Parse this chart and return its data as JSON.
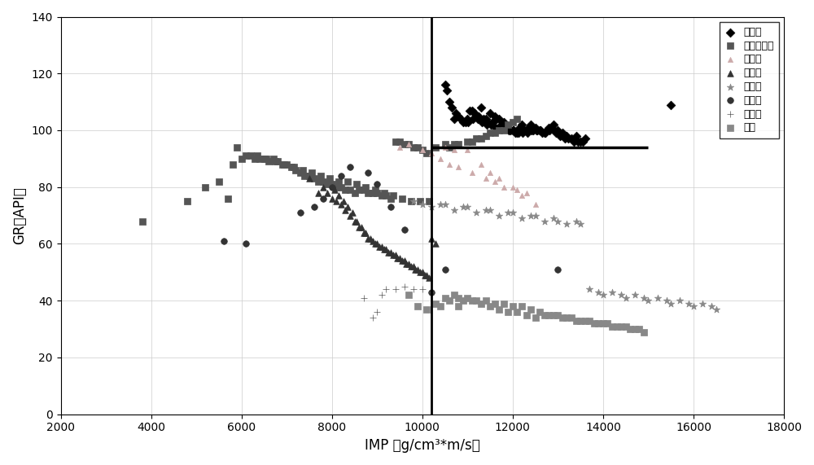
{
  "title": "",
  "xlabel": "IMP （g/cm³*m/s）",
  "ylabel": "GR（API）",
  "xlim": [
    2000,
    18000
  ],
  "ylim": [
    0,
    140
  ],
  "xticks": [
    2000,
    4000,
    6000,
    8000,
    10000,
    12000,
    14000,
    16000,
    18000
  ],
  "yticks": [
    0,
    20,
    40,
    60,
    80,
    100,
    120,
    140
  ],
  "vline_x": 10200,
  "hline_y": 94,
  "hline_xstart": 10200,
  "hline_xend": 15000,
  "series": {
    "粗面岩": {
      "marker": "D",
      "color": "#000000",
      "size": 30,
      "x": [
        10500,
        10700,
        10900,
        11000,
        11100,
        11200,
        11300,
        11400,
        11500,
        11600,
        11700,
        11800,
        11900,
        12000,
        12100,
        12200,
        12300,
        12400,
        12500,
        12600,
        12700,
        12800,
        12900,
        13000,
        13100,
        13200,
        13400,
        13600,
        10600,
        10800,
        11050,
        11150,
        11250,
        11350,
        11450,
        11550,
        11650,
        11750,
        11850,
        11950,
        12050,
        12150,
        12250,
        12350,
        12450,
        12550,
        12650,
        12750,
        12850,
        12950,
        13050,
        13150,
        13300,
        13500,
        10550,
        10650,
        10750,
        10850,
        10950,
        11020,
        11120,
        11220,
        11320,
        11420,
        11520,
        11620,
        11720,
        11820,
        11920,
        12020,
        12120,
        12220,
        12320,
        12420,
        12520,
        12620,
        12720,
        12820,
        12920,
        13020,
        13120,
        13220,
        13350,
        13450,
        13550,
        15500
      ],
      "y": [
        116,
        104,
        103,
        104,
        107,
        105,
        108,
        104,
        106,
        105,
        104,
        103,
        101,
        100,
        99,
        102,
        100,
        102,
        101,
        100,
        99,
        101,
        102,
        100,
        99,
        98,
        98,
        97,
        110,
        105,
        107,
        106,
        105,
        104,
        103,
        103,
        104,
        102,
        101,
        100,
        99,
        101,
        100,
        101,
        100,
        100,
        99,
        100,
        101,
        99,
        98,
        97,
        97,
        96,
        114,
        108,
        106,
        104,
        103,
        103,
        104,
        104,
        103,
        102,
        102,
        101,
        101,
        101,
        100,
        100,
        99,
        99,
        99,
        100,
        100,
        100,
        99,
        100,
        100,
        99,
        98,
        97,
        96,
        96,
        96,
        109
      ]
    },
    "蚀变玄武岩": {
      "marker": "s",
      "color": "#555555",
      "size": 30,
      "x": [
        5700,
        5900,
        6000,
        6200,
        6300,
        6400,
        6500,
        6600,
        6700,
        6800,
        6900,
        7000,
        7100,
        7200,
        7300,
        7400,
        7500,
        7600,
        7700,
        7800,
        7900,
        8000,
        8100,
        8200,
        8300,
        8400,
        8500,
        8600,
        8700,
        8800,
        8900,
        9000,
        9100,
        9200,
        9300,
        9400,
        9500,
        9600,
        9700,
        9800,
        9900,
        10000,
        10100,
        3800,
        4800,
        5200,
        5500,
        5800,
        6100,
        6350,
        6550,
        6750,
        6950,
        7150,
        7350,
        7550,
        7750,
        7950,
        8150,
        8350,
        8550,
        8750,
        8950,
        9150,
        9350,
        9550,
        9750,
        9950,
        10150,
        10300,
        10500,
        10700,
        11000,
        11200,
        11400,
        11500,
        11700,
        11900,
        12100,
        10600,
        10800,
        11100,
        11300,
        11600,
        11800,
        12000
      ],
      "y": [
        76,
        94,
        90,
        91,
        90,
        90,
        90,
        89,
        90,
        89,
        88,
        88,
        87,
        86,
        85,
        84,
        84,
        83,
        82,
        82,
        81,
        81,
        80,
        80,
        79,
        79,
        78,
        79,
        79,
        78,
        78,
        78,
        77,
        77,
        76,
        96,
        96,
        95,
        95,
        94,
        94,
        93,
        92,
        68,
        75,
        80,
        82,
        88,
        91,
        91,
        90,
        89,
        88,
        87,
        86,
        85,
        84,
        83,
        82,
        82,
        81,
        80,
        79,
        78,
        77,
        76,
        75,
        75,
        75,
        94,
        95,
        95,
        96,
        97,
        98,
        99,
        100,
        102,
        104,
        94,
        95,
        96,
        97,
        99,
        100,
        103
      ]
    },
    "砂砾岩": {
      "marker": "^",
      "color": "#ccaaaa",
      "size": 20,
      "x": [
        9500,
        9700,
        10000,
        10500,
        10700,
        11000,
        11300,
        11500,
        11700,
        12000,
        12200,
        12500,
        10200,
        10400,
        10600,
        10800,
        11100,
        11400,
        11600,
        11800,
        12100,
        12300
      ],
      "y": [
        94,
        95,
        93,
        94,
        93,
        93,
        88,
        85,
        83,
        80,
        77,
        74,
        92,
        90,
        88,
        87,
        85,
        83,
        82,
        80,
        79,
        78
      ]
    },
    "细砂岩": {
      "marker": "^",
      "color": "#333333",
      "size": 30,
      "x": [
        7500,
        7700,
        7800,
        7900,
        8000,
        8100,
        8200,
        8300,
        8400,
        8500,
        8600,
        8700,
        8800,
        8900,
        9000,
        9100,
        9200,
        9300,
        9400,
        9500,
        9600,
        9700,
        9800,
        9900,
        10000,
        10100,
        10200,
        10300,
        8050,
        8150,
        8250,
        8350,
        8450,
        8550,
        8650,
        8750,
        8850,
        8950,
        9050,
        9150,
        9250,
        9350,
        9450,
        9550,
        9650,
        9750,
        9850,
        9950,
        10050,
        10150
      ],
      "y": [
        83,
        78,
        80,
        78,
        76,
        75,
        74,
        72,
        70,
        68,
        66,
        64,
        62,
        61,
        60,
        59,
        58,
        57,
        56,
        55,
        54,
        53,
        52,
        51,
        50,
        49,
        62,
        60,
        79,
        77,
        75,
        73,
        71,
        68,
        66,
        64,
        62,
        60,
        59,
        58,
        57,
        56,
        55,
        54,
        53,
        52,
        51,
        50,
        49,
        48
      ]
    },
    "玄武岩": {
      "marker": "*",
      "color": "#888888",
      "size": 40,
      "x": [
        9800,
        10000,
        10500,
        11000,
        11500,
        12000,
        12500,
        13000,
        13500,
        14000,
        14500,
        15000,
        15500,
        16000,
        16500,
        10200,
        10700,
        11200,
        11700,
        12200,
        12700,
        13200,
        13700,
        14200,
        14700,
        15200,
        15700,
        16200,
        10400,
        10900,
        11400,
        11900,
        12400,
        12900,
        13400,
        13900,
        14400,
        14900,
        15400,
        15900,
        16400
      ],
      "y": [
        75,
        74,
        74,
        73,
        72,
        71,
        70,
        68,
        67,
        42,
        41,
        40,
        39,
        38,
        37,
        73,
        72,
        71,
        70,
        69,
        68,
        67,
        44,
        43,
        42,
        41,
        40,
        39,
        74,
        73,
        72,
        71,
        70,
        69,
        68,
        43,
        42,
        41,
        40,
        39,
        38
      ]
    },
    "粉砂岩": {
      "marker": "o",
      "color": "#333333",
      "size": 30,
      "x": [
        5600,
        6100,
        7300,
        7600,
        7800,
        8000,
        8200,
        8400,
        8800,
        9000,
        9300,
        9600,
        10200,
        10500,
        13000
      ],
      "y": [
        61,
        60,
        71,
        73,
        76,
        80,
        84,
        87,
        85,
        81,
        73,
        65,
        43,
        51,
        51
      ]
    },
    "角砾岩": {
      "marker": "+",
      "color": "#555555",
      "size": 40,
      "x": [
        8700,
        8900,
        9000,
        9100,
        9200,
        9400,
        9600,
        9800,
        10000,
        10200
      ],
      "y": [
        41,
        34,
        36,
        42,
        44,
        44,
        45,
        44,
        44,
        43
      ]
    },
    "泥岩": {
      "marker": "s",
      "color": "#888888",
      "size": 30,
      "x": [
        9700,
        9900,
        10100,
        10300,
        10500,
        10700,
        10900,
        11100,
        11300,
        11500,
        11700,
        11900,
        12100,
        12300,
        12500,
        12700,
        12900,
        13100,
        13300,
        13500,
        13700,
        13900,
        14100,
        14300,
        14500,
        14700,
        14900,
        10600,
        10800,
        11000,
        11200,
        11400,
        11600,
        11800,
        12000,
        12200,
        12400,
        12600,
        12800,
        13000,
        13200,
        13400,
        13600,
        13800,
        14000,
        14200,
        14400,
        14600,
        14800,
        10400,
        10800
      ],
      "y": [
        42,
        38,
        37,
        39,
        41,
        42,
        40,
        40,
        39,
        38,
        37,
        36,
        36,
        35,
        34,
        35,
        35,
        34,
        34,
        33,
        33,
        32,
        32,
        31,
        31,
        30,
        29,
        40,
        41,
        41,
        40,
        40,
        39,
        39,
        38,
        38,
        37,
        36,
        35,
        35,
        34,
        33,
        33,
        32,
        32,
        31,
        31,
        30,
        30,
        38,
        38
      ]
    }
  }
}
